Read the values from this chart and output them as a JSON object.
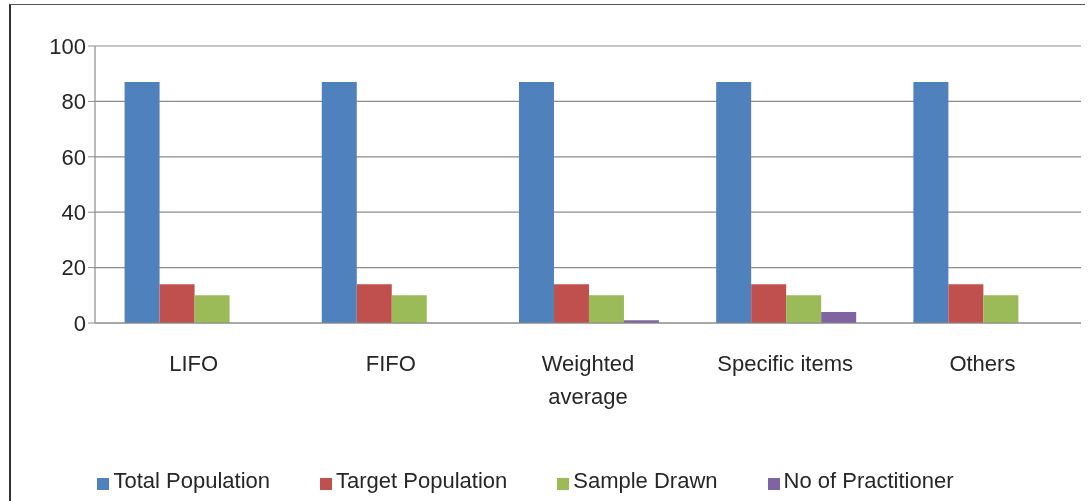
{
  "chart_data": {
    "type": "bar",
    "categories": [
      "LIFO",
      "FIFO",
      "Weighted average",
      "Specific items",
      "Others"
    ],
    "series": [
      {
        "name": "Total Population",
        "color": "#4f81bd",
        "values": [
          87,
          87,
          87,
          87,
          87
        ]
      },
      {
        "name": "Target Population",
        "color": "#c0504d",
        "values": [
          14,
          14,
          14,
          14,
          14
        ]
      },
      {
        "name": "Sample Drawn",
        "color": "#9bbb59",
        "values": [
          10,
          10,
          10,
          10,
          10
        ]
      },
      {
        "name": "No of Practitioner",
        "color": "#8064a2",
        "values": [
          0,
          0,
          1,
          4,
          0
        ]
      }
    ],
    "ylim": [
      0,
      100
    ],
    "yticks": [
      0,
      20,
      40,
      60,
      80,
      100
    ],
    "grid": "y",
    "legend": "bottom"
  }
}
